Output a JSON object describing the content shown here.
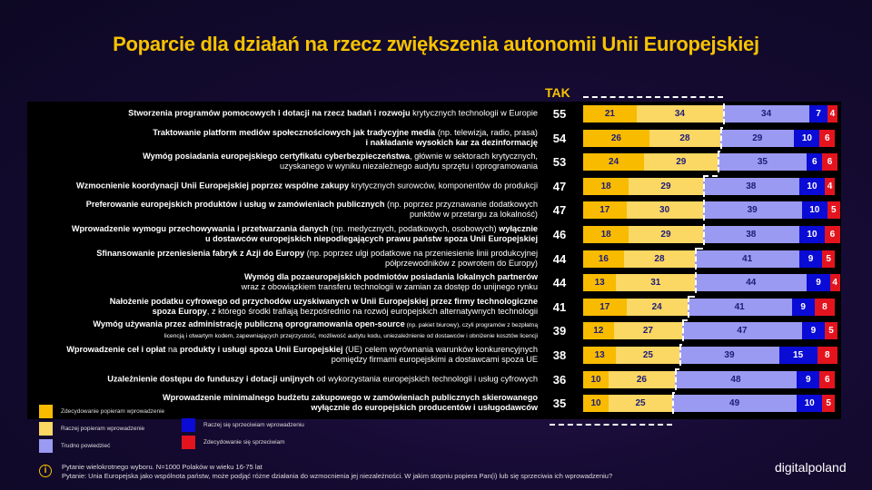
{
  "title": "Poparcie dla działań na rzecz zwiększenia autonomii Unii Europejskiej",
  "chart_data": {
    "type": "bar",
    "stacked": true,
    "orientation": "horizontal",
    "title": "Poparcie dla działań na rzecz zwiększenia autonomii Unii Europejskiej",
    "tak_label": "TAK",
    "series": [
      {
        "name": "Zdecydowanie popieram wprowadzenie",
        "color": "#f8bb00"
      },
      {
        "name": "Raczej popieram wprowadzenie",
        "color": "#fbd763"
      },
      {
        "name": "Trudno powiedzieć",
        "color": "#9a9af2"
      },
      {
        "name": "Raczej się sprzeciwiam wprowadzeniu",
        "color": "#0b0bd6"
      },
      {
        "name": "Zdecydowanie się sprzeciwiam",
        "color": "#e3141e"
      }
    ],
    "rows": [
      {
        "label": [
          {
            "t": "Stworzenia programów pomocowych i dotacji na rzecz badań i rozwoju",
            "b": 1
          },
          {
            "t": " krytycznych technologii w Europie",
            "b": 0
          }
        ],
        "tak": 55,
        "values": [
          21,
          34,
          34,
          7,
          4
        ]
      },
      {
        "label": [
          {
            "t": "Traktowanie platform mediów społecznościowych jak tradycyjne media",
            "b": 1
          },
          {
            "t": " (np. telewizja, radio, prasa)",
            "b": 0
          },
          {
            "t": "\ni nakładanie wysokich kar za dezinformację",
            "b": 1
          }
        ],
        "tak": 54,
        "values": [
          26,
          28,
          29,
          10,
          6
        ]
      },
      {
        "label": [
          {
            "t": "Wymóg posiadania europejskiego certyfikatu cyberbezpieczeństwa",
            "b": 1
          },
          {
            "t": ", głównie w sektorach krytycznych,\nuzyskanego w wyniku niezależnego audytu sprzętu i oprogramowania",
            "b": 0
          }
        ],
        "tak": 53,
        "values": [
          24,
          29,
          35,
          6,
          6
        ]
      },
      {
        "label": [
          {
            "t": "Wzmocnienie koordynacji Unii Europejskiej poprzez wspólne zakupy",
            "b": 1
          },
          {
            "t": " krytycznych surowców, komponentów do produkcji",
            "b": 0
          }
        ],
        "tak": 47,
        "values": [
          18,
          29,
          38,
          10,
          4
        ]
      },
      {
        "label": [
          {
            "t": "Preferowanie europejskich produktów i usług w zamówieniach publicznych",
            "b": 1
          },
          {
            "t": " (np. poprzez przyznawanie dodatkowych\npunktów w przetargu za lokalność)",
            "b": 0
          }
        ],
        "tak": 47,
        "values": [
          17,
          30,
          39,
          10,
          5
        ]
      },
      {
        "label": [
          {
            "t": "Wprowadzenie wymogu przechowywania i przetwarzania danych",
            "b": 1
          },
          {
            "t": " (np. medycznych, podatkowych, osobowych) ",
            "b": 0
          },
          {
            "t": "wyłącznie\nu dostawców europejskich niepodlegających prawu państw spoza Unii Europejskiej",
            "b": 1
          }
        ],
        "tak": 46,
        "values": [
          18,
          29,
          38,
          10,
          6
        ]
      },
      {
        "label": [
          {
            "t": "Sfinansowanie przeniesienia fabryk z Azji do Europy",
            "b": 1
          },
          {
            "t": " (np. poprzez ulgi podatkowe na przeniesienie linii produkcyjnej\npółprzewodników z powrotem do Europy)",
            "b": 0
          }
        ],
        "tak": 44,
        "values": [
          16,
          28,
          41,
          9,
          5
        ]
      },
      {
        "label": [
          {
            "t": "Wymóg dla pozaeuropejskich podmiotów posiadania lokalnych partnerów",
            "b": 1
          },
          {
            "t": "\nwraz z obowiązkiem transferu technologii w zamian za dostęp do unijnego rynku",
            "b": 0
          }
        ],
        "tak": 44,
        "values": [
          13,
          31,
          44,
          9,
          4
        ]
      },
      {
        "label": [
          {
            "t": "Nałożenie podatku cyfrowego od przychodów uzyskiwanych w Unii Europejskiej przez firmy technologiczne\nspoza Europy",
            "b": 1
          },
          {
            "t": ", z którego środki trafiają bezpośrednio na rozwój europejskich alternatywnych technologii",
            "b": 0
          }
        ],
        "tak": 41,
        "values": [
          17,
          24,
          41,
          9,
          8
        ]
      },
      {
        "label": [
          {
            "t": "Wymóg używania przez administrację publiczną oprogramowania open-source",
            "b": 1
          },
          {
            "t": " (np. pakiet biurowy), czyli programów z bezpłatną\nlicencją i otwartym kodem, zapewniających przejrzystość, możliwość audytu kodu, uniezależnienie od dostawców i obniżenie kosztów licencji",
            "b": 0,
            "small": 1
          }
        ],
        "tak": 39,
        "values": [
          12,
          27,
          47,
          9,
          5
        ]
      },
      {
        "label": [
          {
            "t": "Wprowadzenie ceł i opłat",
            "b": 1
          },
          {
            "t": " na ",
            "b": 0
          },
          {
            "t": "produkty i usługi spoza Unii Europejskiej",
            "b": 1
          },
          {
            "t": " (UE) celem wyrównania warunków konkurencyjnych\npomiędzy firmami europejskimi a dostawcami spoza UE",
            "b": 0
          }
        ],
        "tak": 38,
        "values": [
          13,
          25,
          39,
          15,
          8
        ]
      },
      {
        "label": [
          {
            "t": "Uzależnienie dostępu do funduszy i dotacji unijnych",
            "b": 1
          },
          {
            "t": " od wykorzystania europejskich technologii i usług cyfrowych",
            "b": 0
          }
        ],
        "tak": 36,
        "values": [
          10,
          26,
          48,
          9,
          6
        ]
      },
      {
        "label": [
          {
            "t": "Wprowadzenie minimalnego budżetu zakupowego w zamówieniach publicznych skierowanego\nwyłącznie do europejskich producentów i usługodawców",
            "b": 1
          }
        ],
        "tak": 35,
        "values": [
          10,
          25,
          49,
          10,
          5
        ]
      }
    ]
  },
  "footer": {
    "line1": "Pytanie wielokrotnego wyboru. N=1000 Polaków w wieku 16-75 lat",
    "line2": "Pytanie: Unia Europejska jako wspólnota państw, może podjąć różne działania do wzmocnienia jej niezależności. W jakim stopniu popiera Pan(i) lub się sprzeciwia ich wprowadzeniu?",
    "info_icon": "info-icon"
  },
  "logo": "digitalpoland"
}
